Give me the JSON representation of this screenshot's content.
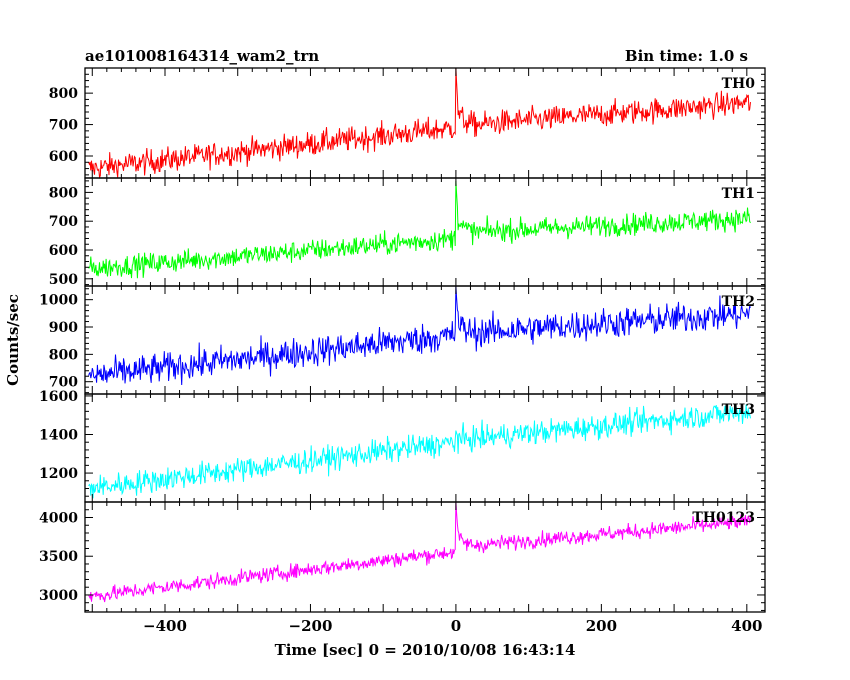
{
  "header": {
    "source": "ae101008164314_wam2_trn",
    "bin_time": "Bin time: 1.0 s"
  },
  "chart_data": {
    "type": "line",
    "xlabel": "Time [sec] 0 = 2010/10/08 16:43:14",
    "ylabel": "Counts/sec",
    "xlim": [
      -510,
      425
    ],
    "x_ticks": [
      -400,
      -200,
      0,
      200,
      400
    ],
    "x_tick_labels": [
      "−400",
      "−200",
      "0",
      "200",
      "400"
    ],
    "x_range": [
      -505,
      405
    ],
    "panels": [
      {
        "name": "TH0",
        "color": "#ff0000",
        "ylim": [
          530,
          880
        ],
        "yticks": [
          600,
          700,
          800
        ],
        "trend": {
          "start": 560,
          "pre_burst": 690,
          "post_burst": 695,
          "end": 770
        },
        "noise": 28,
        "burst_peak": 880
      },
      {
        "name": "TH1",
        "color": "#00ff00",
        "ylim": [
          475,
          850
        ],
        "yticks": [
          500,
          600,
          700,
          800
        ],
        "trend": {
          "start": 535,
          "pre_burst": 640,
          "post_burst": 660,
          "end": 710
        },
        "noise": 27,
        "burst_peak": 840
      },
      {
        "name": "TH2",
        "color": "#0000ff",
        "ylim": [
          655,
          1050
        ],
        "yticks": [
          700,
          800,
          900,
          1000
        ],
        "trend": {
          "start": 720,
          "pre_burst": 870,
          "post_burst": 875,
          "end": 950
        },
        "noise": 40,
        "burst_peak": 1050
      },
      {
        "name": "TH3",
        "color": "#00ffff",
        "ylim": [
          1050,
          1610
        ],
        "yticks": [
          1200,
          1400,
          1600
        ],
        "trend": {
          "start": 1120,
          "pre_burst": 1360,
          "post_burst": 1370,
          "end": 1520
        },
        "noise": 45,
        "burst_peak": 1420
      },
      {
        "name": "TH0123",
        "color": "#ff00ff",
        "ylim": [
          2780,
          4200
        ],
        "yticks": [
          3000,
          3500,
          4000
        ],
        "trend": {
          "start": 2980,
          "pre_burst": 3560,
          "post_burst": 3620,
          "end": 3950
        },
        "noise": 70,
        "burst_peak": 4200
      }
    ]
  }
}
